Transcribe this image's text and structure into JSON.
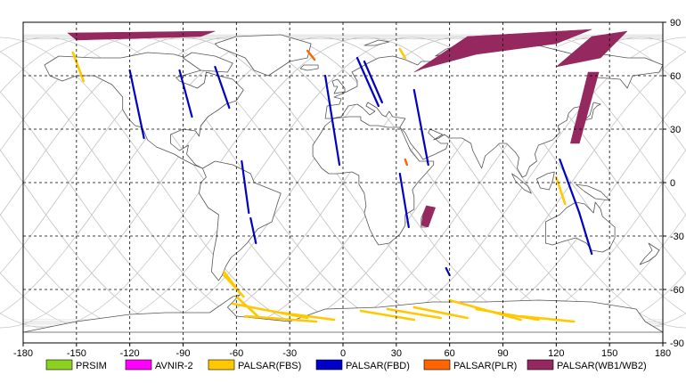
{
  "map": {
    "x_ticks": [
      "-180",
      "-150",
      "-120",
      "-90",
      "-60",
      "-30",
      "0",
      "30",
      "60",
      "90",
      "120",
      "150",
      "180"
    ],
    "y_ticks": [
      "90",
      "60",
      "30",
      "0",
      "-30",
      "-60",
      "-90"
    ],
    "x_range": [
      -180,
      180
    ],
    "y_range": [
      -90,
      90
    ],
    "grid": true,
    "land_color": "#ffffff",
    "coast_color": "#555555",
    "orbit_color": "#c8c8c8"
  },
  "legend": {
    "placement": "bottom",
    "items": [
      {
        "label": "PRSIM",
        "color": "#8cd020"
      },
      {
        "label": "AVNIR-2",
        "color": "#ff00ff"
      },
      {
        "label": "PALSAR(FBS)",
        "color": "#ffc800"
      },
      {
        "label": "PALSAR(FBD)",
        "color": "#0000c8"
      },
      {
        "label": "PALSAR(PLR)",
        "color": "#ff6400"
      },
      {
        "label": "PALSAR(WB1/WB2)",
        "color": "#962860"
      }
    ]
  },
  "observations": {
    "fbd": [
      [
        [
          -120,
          63
        ],
        [
          -112,
          25
        ]
      ],
      [
        [
          -92,
          63
        ],
        [
          -85,
          37
        ]
      ],
      [
        [
          -72,
          65
        ],
        [
          -64,
          42
        ]
      ],
      [
        [
          -57,
          12
        ],
        [
          -53,
          -17
        ]
      ],
      [
        [
          -52,
          -20
        ],
        [
          -49,
          -34
        ]
      ],
      [
        [
          -10,
          60
        ],
        [
          -2,
          10
        ]
      ],
      [
        [
          8,
          70
        ],
        [
          20,
          43
        ]
      ],
      [
        [
          12,
          68
        ],
        [
          22,
          45
        ]
      ],
      [
        [
          40,
          52
        ],
        [
          48,
          10
        ]
      ],
      [
        [
          32,
          5
        ],
        [
          37,
          -25
        ]
      ],
      [
        [
          122,
          13
        ],
        [
          133,
          -17
        ]
      ],
      [
        [
          133,
          -17
        ],
        [
          140,
          -40
        ]
      ],
      [
        [
          58,
          -48
        ],
        [
          60,
          -52
        ]
      ]
    ],
    "fbs": [
      [
        [
          -152,
          73
        ],
        [
          -146,
          57
        ]
      ],
      [
        [
          32,
          75
        ],
        [
          35,
          70
        ]
      ],
      [
        [
          -67,
          -50
        ],
        [
          -58,
          -62
        ]
      ],
      [
        [
          -67,
          -52
        ],
        [
          -56,
          -64
        ]
      ],
      [
        [
          -60,
          -64
        ],
        [
          -48,
          -75
        ]
      ],
      [
        [
          -62,
          -68
        ],
        [
          -20,
          -76
        ]
      ],
      [
        [
          -55,
          -75
        ],
        [
          -15,
          -78
        ]
      ],
      [
        [
          -35,
          -73
        ],
        [
          -5,
          -77
        ]
      ],
      [
        [
          10,
          -72
        ],
        [
          40,
          -77
        ]
      ],
      [
        [
          25,
          -71
        ],
        [
          55,
          -76
        ]
      ],
      [
        [
          40,
          -70
        ],
        [
          70,
          -76
        ]
      ],
      [
        [
          60,
          -66
        ],
        [
          100,
          -77
        ]
      ],
      [
        [
          75,
          -71
        ],
        [
          110,
          -77
        ]
      ],
      [
        [
          100,
          -75
        ],
        [
          130,
          -78
        ]
      ],
      [
        [
          120,
          3
        ],
        [
          125,
          -12
        ]
      ]
    ],
    "plr": [
      [
        [
          -20,
          74
        ],
        [
          -16,
          69
        ]
      ],
      [
        [
          35,
          13
        ],
        [
          36,
          10
        ]
      ]
    ],
    "wb": [
      [
        [
          [
            -155,
            84
          ],
          [
            -72,
            85
          ],
          [
            -80,
            82
          ],
          [
            -150,
            80
          ]
        ]
      ],
      [
        [
          [
            40,
            62
          ],
          [
            70,
            82
          ],
          [
            140,
            86
          ],
          [
            120,
            78
          ],
          [
            75,
            72
          ],
          [
            45,
            64
          ]
        ]
      ],
      [
        [
          [
            120,
            65
          ],
          [
            140,
            82
          ],
          [
            160,
            85
          ],
          [
            145,
            70
          ]
        ]
      ],
      [
        [
          [
            128,
            22
          ],
          [
            138,
            62
          ],
          [
            144,
            62
          ],
          [
            133,
            22
          ]
        ]
      ],
      [
        [
          [
            45,
            -18
          ],
          [
            47,
            -13
          ],
          [
            52,
            -14
          ],
          [
            48,
            -25
          ],
          [
            44,
            -24
          ]
        ]
      ]
    ]
  }
}
